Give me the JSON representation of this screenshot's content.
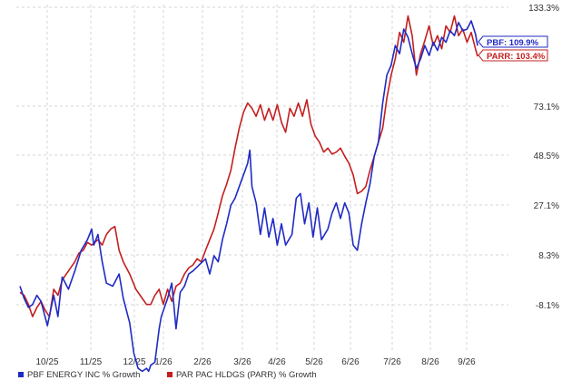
{
  "chart_data": {
    "type": "line",
    "x_ticks": [
      "10/25",
      "11/25",
      "12/25",
      "1/26",
      "2/26",
      "3/26",
      "4/26",
      "5/26",
      "6/26",
      "7/26",
      "8/26",
      "9/26"
    ],
    "y_ticks": [
      "133.3%",
      "73.1%",
      "48.5%",
      "27.1%",
      "8.3%",
      "-8.1%"
    ],
    "ylabel": "",
    "xlabel": "",
    "grid": true,
    "legend_position": "bottom-left",
    "end_labels": [
      {
        "text": "PBF: 109.9%",
        "value": 109.9,
        "color": "#1f2bc4"
      },
      {
        "text": "PARR: 103.4%",
        "value": 103.4,
        "color": "#c41f1f"
      }
    ],
    "series": [
      {
        "name": "PBF ENERGY INC % Growth",
        "color": "#1f2bc4",
        "points": [
          [
            0,
            -2
          ],
          [
            0.1,
            -6
          ],
          [
            0.2,
            -9
          ],
          [
            0.3,
            -8
          ],
          [
            0.4,
            -5
          ],
          [
            0.5,
            -7
          ],
          [
            0.65,
            -15
          ],
          [
            0.8,
            -5
          ],
          [
            0.9,
            -12
          ],
          [
            1.0,
            1
          ],
          [
            1.15,
            -3
          ],
          [
            1.3,
            3
          ],
          [
            1.45,
            10
          ],
          [
            1.6,
            14
          ],
          [
            1.7,
            18
          ],
          [
            1.75,
            12
          ],
          [
            1.85,
            16
          ],
          [
            1.95,
            6
          ],
          [
            2.05,
            -1
          ],
          [
            2.2,
            -2
          ],
          [
            2.35,
            2
          ],
          [
            2.45,
            -6
          ],
          [
            2.6,
            -14
          ],
          [
            2.7,
            -24
          ],
          [
            2.8,
            -29
          ],
          [
            2.9,
            -30
          ],
          [
            3.0,
            -29
          ],
          [
            3.05,
            -30
          ],
          [
            3.1,
            -28
          ],
          [
            3.2,
            -27
          ],
          [
            3.3,
            -16
          ],
          [
            3.35,
            -12
          ],
          [
            3.5,
            -6
          ],
          [
            3.6,
            -1
          ],
          [
            3.7,
            -16
          ],
          [
            3.8,
            -4
          ],
          [
            3.9,
            -2
          ],
          [
            4.0,
            2
          ],
          [
            4.1,
            3
          ],
          [
            4.25,
            5
          ],
          [
            4.4,
            7
          ],
          [
            4.5,
            2
          ],
          [
            4.6,
            8
          ],
          [
            4.7,
            6
          ],
          [
            4.8,
            14
          ],
          [
            4.9,
            20
          ],
          [
            5.0,
            27
          ],
          [
            5.1,
            30
          ],
          [
            5.2,
            35
          ],
          [
            5.3,
            40
          ],
          [
            5.4,
            45
          ],
          [
            5.45,
            51
          ],
          [
            5.5,
            35
          ],
          [
            5.6,
            28
          ],
          [
            5.7,
            16
          ],
          [
            5.8,
            26
          ],
          [
            5.9,
            15
          ],
          [
            6.0,
            22
          ],
          [
            6.1,
            12
          ],
          [
            6.2,
            20
          ],
          [
            6.3,
            12
          ],
          [
            6.45,
            16
          ],
          [
            6.55,
            30
          ],
          [
            6.65,
            32
          ],
          [
            6.75,
            20
          ],
          [
            6.85,
            28
          ],
          [
            6.95,
            15
          ],
          [
            7.05,
            26
          ],
          [
            7.15,
            14
          ],
          [
            7.3,
            18
          ],
          [
            7.4,
            24
          ],
          [
            7.5,
            28
          ],
          [
            7.6,
            22
          ],
          [
            7.7,
            28
          ],
          [
            7.8,
            24
          ],
          [
            7.9,
            12
          ],
          [
            8.0,
            10
          ],
          [
            8.1,
            20
          ],
          [
            8.2,
            28
          ],
          [
            8.3,
            36
          ],
          [
            8.4,
            48
          ],
          [
            8.5,
            55
          ],
          [
            8.6,
            75
          ],
          [
            8.7,
            92
          ],
          [
            8.8,
            98
          ],
          [
            8.9,
            110
          ],
          [
            9.0,
            105
          ],
          [
            9.1,
            120
          ],
          [
            9.2,
            115
          ],
          [
            9.3,
            105
          ],
          [
            9.4,
            96
          ],
          [
            9.5,
            102
          ],
          [
            9.6,
            110
          ],
          [
            9.7,
            104
          ],
          [
            9.8,
            112
          ],
          [
            9.9,
            107
          ],
          [
            10.0,
            115
          ],
          [
            10.1,
            112
          ],
          [
            10.2,
            119
          ],
          [
            10.3,
            116
          ],
          [
            10.4,
            124
          ],
          [
            10.5,
            119
          ],
          [
            10.6,
            120
          ],
          [
            10.7,
            125
          ],
          [
            10.8,
            117
          ],
          [
            10.85,
            109.9
          ]
        ]
      },
      {
        "name": "PAR PAC HLDGS (PARR) % Growth",
        "color": "#c41f1f",
        "points": [
          [
            0,
            -4
          ],
          [
            0.1,
            -5
          ],
          [
            0.2,
            -8
          ],
          [
            0.3,
            -12
          ],
          [
            0.4,
            -9
          ],
          [
            0.5,
            -7
          ],
          [
            0.6,
            -10
          ],
          [
            0.7,
            -12
          ],
          [
            0.8,
            -3
          ],
          [
            0.9,
            -5
          ],
          [
            1.0,
            0
          ],
          [
            1.1,
            2
          ],
          [
            1.2,
            4
          ],
          [
            1.3,
            6
          ],
          [
            1.4,
            9
          ],
          [
            1.5,
            10
          ],
          [
            1.6,
            13
          ],
          [
            1.7,
            12
          ],
          [
            1.85,
            14
          ],
          [
            1.95,
            12
          ],
          [
            2.05,
            16
          ],
          [
            2.15,
            18
          ],
          [
            2.25,
            19
          ],
          [
            2.35,
            10
          ],
          [
            2.45,
            6
          ],
          [
            2.6,
            2
          ],
          [
            2.75,
            -3
          ],
          [
            2.9,
            -6
          ],
          [
            3.0,
            -8
          ],
          [
            3.1,
            -8
          ],
          [
            3.2,
            -5
          ],
          [
            3.3,
            -3
          ],
          [
            3.4,
            -8
          ],
          [
            3.5,
            -3
          ],
          [
            3.6,
            -7
          ],
          [
            3.7,
            -2
          ],
          [
            3.8,
            -1
          ],
          [
            3.9,
            2
          ],
          [
            4.0,
            4
          ],
          [
            4.1,
            5
          ],
          [
            4.2,
            7
          ],
          [
            4.3,
            6
          ],
          [
            4.4,
            10
          ],
          [
            4.5,
            14
          ],
          [
            4.6,
            18
          ],
          [
            4.7,
            24
          ],
          [
            4.8,
            31
          ],
          [
            4.9,
            36
          ],
          [
            5.0,
            42
          ],
          [
            5.1,
            52
          ],
          [
            5.2,
            62
          ],
          [
            5.3,
            70
          ],
          [
            5.4,
            75
          ],
          [
            5.5,
            72
          ],
          [
            5.6,
            68
          ],
          [
            5.7,
            74
          ],
          [
            5.8,
            66
          ],
          [
            5.9,
            72
          ],
          [
            6.0,
            66
          ],
          [
            6.1,
            74
          ],
          [
            6.2,
            65
          ],
          [
            6.3,
            60
          ],
          [
            6.4,
            72
          ],
          [
            6.5,
            68
          ],
          [
            6.6,
            75
          ],
          [
            6.7,
            68
          ],
          [
            6.8,
            77
          ],
          [
            6.9,
            64
          ],
          [
            7.0,
            58
          ],
          [
            7.1,
            55
          ],
          [
            7.2,
            50
          ],
          [
            7.3,
            52
          ],
          [
            7.4,
            49
          ],
          [
            7.5,
            50
          ],
          [
            7.6,
            52
          ],
          [
            7.7,
            48
          ],
          [
            7.8,
            45
          ],
          [
            7.9,
            40
          ],
          [
            8.0,
            32
          ],
          [
            8.1,
            33
          ],
          [
            8.2,
            35
          ],
          [
            8.3,
            42
          ],
          [
            8.4,
            48
          ],
          [
            8.5,
            55
          ],
          [
            8.6,
            62
          ],
          [
            8.7,
            78
          ],
          [
            8.8,
            92
          ],
          [
            8.9,
            102
          ],
          [
            9.0,
            118
          ],
          [
            9.1,
            112
          ],
          [
            9.2,
            128
          ],
          [
            9.3,
            116
          ],
          [
            9.4,
            92
          ],
          [
            9.5,
            105
          ],
          [
            9.6,
            113
          ],
          [
            9.7,
            122
          ],
          [
            9.8,
            110
          ],
          [
            9.9,
            116
          ],
          [
            10.0,
            108
          ],
          [
            10.1,
            122
          ],
          [
            10.2,
            118
          ],
          [
            10.3,
            128
          ],
          [
            10.4,
            116
          ],
          [
            10.5,
            120
          ],
          [
            10.6,
            112
          ],
          [
            10.7,
            118
          ],
          [
            10.8,
            108
          ],
          [
            10.85,
            103.4
          ]
        ]
      }
    ]
  }
}
